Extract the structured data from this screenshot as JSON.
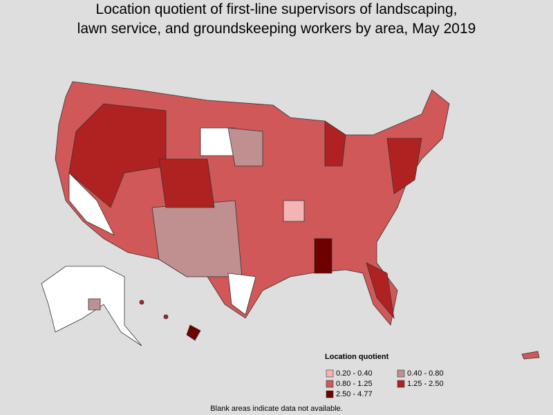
{
  "title_lines": [
    "Location quotient of first-line supervisors of landscaping,",
    "lawn service, and groundskeeping workers by area, May 2019"
  ],
  "legend": {
    "title": "Location quotient",
    "items": [
      {
        "label": "0.20 - 0.40",
        "color": "#f2b4b4"
      },
      {
        "label": "0.40 - 0.80",
        "color": "#c09090"
      },
      {
        "label": "0.80 - 1.25",
        "color": "#d05858"
      },
      {
        "label": "1.25 - 2.50",
        "color": "#b02222"
      },
      {
        "label": "2.50 - 4.77",
        "color": "#6e0000"
      }
    ]
  },
  "footnote": "Blank areas indicate data not available."
}
